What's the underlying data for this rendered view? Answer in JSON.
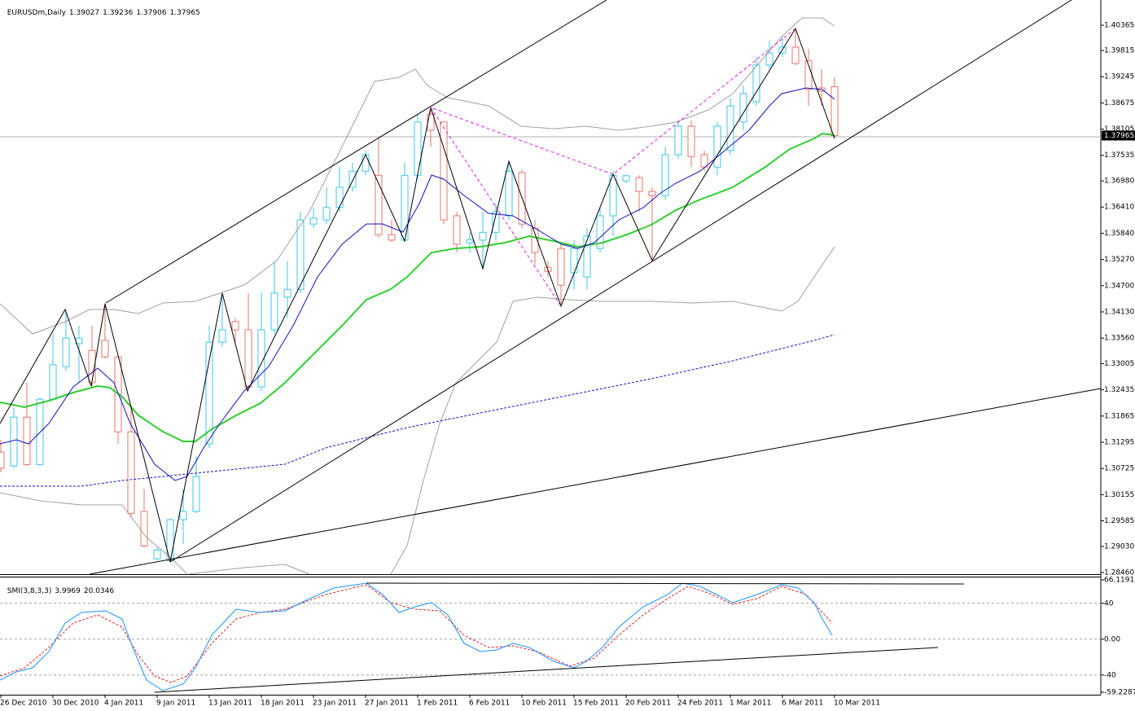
{
  "header": {
    "symbol": "EURUSDm,Daily",
    "ohlc": [
      1.39027,
      1.39236,
      1.37906,
      1.37965
    ]
  },
  "chart_data": [
    {
      "type": "candlestick",
      "categories": [
        "26 Dec 2010",
        null,
        null,
        null,
        "30 Dec 2010",
        null,
        null,
        null,
        "4 Jan 2011",
        null,
        null,
        null,
        "9 Jan 2011",
        null,
        null,
        null,
        "13 Jan 2011",
        null,
        null,
        null,
        "18 Jan 2011",
        null,
        null,
        null,
        "23 Jan 2011",
        null,
        null,
        null,
        "27 Jan 2011",
        null,
        null,
        null,
        "1 Feb 2011",
        null,
        null,
        null,
        "6 Feb 2011",
        null,
        null,
        null,
        "10 Feb 2011",
        null,
        null,
        null,
        "15 Feb 2011",
        null,
        null,
        null,
        "20 Feb 2011",
        null,
        null,
        null,
        "24 Feb 2011",
        null,
        null,
        null,
        "1 Mar 2011",
        null,
        null,
        null,
        "6 Mar 2011",
        null,
        null,
        null,
        "10 Mar 2011"
      ],
      "open": [
        1.3108,
        1.3078,
        1.3184,
        1.3081,
        1.3223,
        1.3294,
        1.3344,
        1.3329,
        1.3351,
        1.3315,
        1.3152,
        1.2979,
        1.2876,
        1.2872,
        1.2961,
        1.2979,
        1.3126,
        1.3347,
        1.3392,
        1.3374,
        1.325,
        1.3374,
        1.3445,
        1.3462,
        1.3604,
        1.3613,
        1.364,
        1.3684,
        1.3719,
        1.371,
        1.3581,
        1.3569,
        1.371,
        1.3843,
        1.3826,
        1.3622,
        1.3563,
        1.3569,
        1.3586,
        1.3622,
        1.3716,
        1.3595,
        1.351,
        1.3551,
        1.3498,
        1.3489,
        1.3551,
        1.3622,
        1.3698,
        1.3705,
        1.3675,
        1.3666,
        1.3755,
        1.3817,
        1.3755,
        1.3728,
        1.3764,
        1.3826,
        1.387,
        1.395,
        1.3976,
        1.3989,
        1.3959,
        1.39,
        1.39027
      ],
      "high": [
        1.3135,
        1.3205,
        1.3259,
        1.3227,
        1.3365,
        1.3418,
        1.3383,
        1.3383,
        1.3432,
        1.3315,
        1.3205,
        1.3028,
        1.2901,
        1.2964,
        1.3028,
        1.3099,
        1.3383,
        1.3454,
        1.34,
        1.3454,
        1.3454,
        1.3524,
        1.3524,
        1.3631,
        1.364,
        1.3684,
        1.3728,
        1.3737,
        1.3764,
        1.379,
        1.3613,
        1.3737,
        1.3843,
        1.3861,
        1.3826,
        1.3631,
        1.3586,
        1.3631,
        1.3648,
        1.3737,
        1.3723,
        1.3613,
        1.3524,
        1.356,
        1.3569,
        1.3595,
        1.364,
        1.3719,
        1.3712,
        1.371,
        1.3684,
        1.3772,
        1.3826,
        1.3829,
        1.3764,
        1.3826,
        1.3879,
        1.3905,
        1.3967,
        1.4003,
        1.4012,
        1.4029,
        1.3985,
        1.3941,
        1.39236
      ],
      "low": [
        1.3064,
        1.3073,
        1.3078,
        1.3078,
        1.322,
        1.3285,
        1.3259,
        1.325,
        1.3312,
        1.3126,
        1.2966,
        1.2901,
        1.2872,
        1.2869,
        1.2908,
        1.2975,
        1.3117,
        1.3338,
        1.3347,
        1.3241,
        1.3241,
        1.3365,
        1.34,
        1.3454,
        1.3595,
        1.3604,
        1.3631,
        1.3675,
        1.371,
        1.3574,
        1.3565,
        1.3565,
        1.3702,
        1.3772,
        1.3604,
        1.3542,
        1.3542,
        1.3507,
        1.3569,
        1.3613,
        1.3595,
        1.3516,
        1.3489,
        1.3427,
        1.3462,
        1.3462,
        1.3542,
        1.3578,
        1.3693,
        1.3631,
        1.3524,
        1.3657,
        1.3746,
        1.3728,
        1.3719,
        1.371,
        1.3755,
        1.3808,
        1.3861,
        1.3941,
        1.3967,
        1.395,
        1.3861,
        1.3861,
        1.37906
      ],
      "close": [
        1.3073,
        1.3184,
        1.3081,
        1.3223,
        1.3298,
        1.3356,
        1.3356,
        1.3259,
        1.3315,
        1.3152,
        1.2975,
        1.2904,
        1.2895,
        1.2961,
        1.2979,
        1.3055,
        1.3347,
        1.3374,
        1.3374,
        1.325,
        1.3374,
        1.3454,
        1.3462,
        1.3613,
        1.3617,
        1.364,
        1.3684,
        1.3719,
        1.3755,
        1.3581,
        1.3569,
        1.371,
        1.3826,
        1.3808,
        1.3613,
        1.356,
        1.357,
        1.3586,
        1.3631,
        1.3719,
        1.3604,
        1.3542,
        1.3501,
        1.3471,
        1.3551,
        1.3578,
        1.3622,
        1.371,
        1.3709,
        1.3675,
        1.3666,
        1.3755,
        1.3817,
        1.3751,
        1.3728,
        1.3817,
        1.3861,
        1.3888,
        1.395,
        1.3976,
        1.3989,
        1.3953,
        1.3897,
        1.3893,
        1.37965
      ],
      "up_color": "#3ec6e8",
      "down_color": "#e8756a",
      "last_price": 1.37965,
      "ylim": [
        1.28425,
        1.40914
      ],
      "yticks": [
        1.40365,
        1.39815,
        1.39245,
        1.38675,
        1.38105,
        1.37535,
        {
          "value": 1.3698,
          "label": "1.36980"
        },
        {
          "value": 1.3641,
          "label": "1.36410"
        },
        {
          "value": 1.3584,
          "label": "1.35840"
        },
        {
          "value": 1.3527,
          "label": "1.35270"
        },
        {
          "value": 1.347,
          "label": "1.34700"
        },
        {
          "value": 1.3413,
          "label": "1.34130"
        },
        {
          "value": 1.3356,
          "label": "1.33560"
        },
        1.33005,
        1.32435,
        1.31865,
        1.31295,
        1.30725,
        1.30155,
        1.29585,
        {
          "value": 1.2903,
          "label": "1.29030"
        },
        {
          "value": 1.2846,
          "label": "1.28460"
        }
      ]
    },
    {
      "type": "line",
      "label": "SMI(3,8,3,3)",
      "legend_values": [
        3.9969,
        20.0346
      ],
      "ylim": [
        -59.2287,
        66.1191
      ],
      "yticks": [
        66.1191,
        40,
        {
          "value": 0,
          "label": "0.00"
        },
        -40,
        -59.2287
      ]
    }
  ]
}
